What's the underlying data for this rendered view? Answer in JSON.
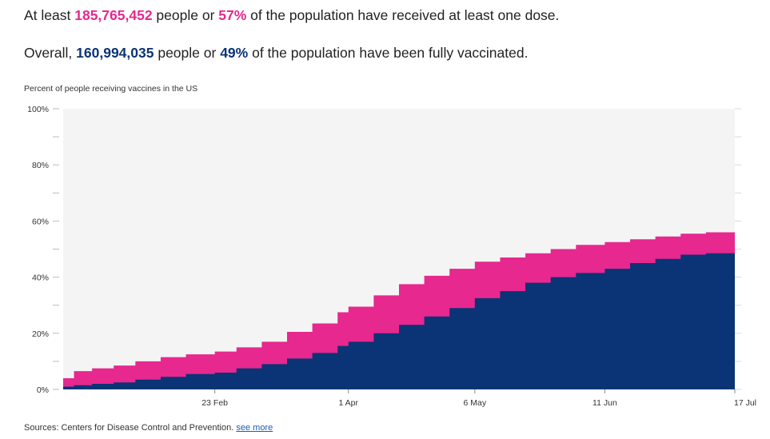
{
  "headline": {
    "line1": {
      "prefix": "At least ",
      "count": "185,765,452",
      "middle": " people or ",
      "percent": "57%",
      "suffix": " of the population have received at least one dose."
    },
    "line2": {
      "prefix": "Overall, ",
      "count": "160,994,035",
      "middle": " people or ",
      "percent": "49%",
      "suffix": " of the population have been fully vaccinated."
    }
  },
  "colors": {
    "one_dose": "#e6288f",
    "fully_vaccinated": "#0a3475",
    "plot_background": "#f4f4f4"
  },
  "chart_data": {
    "type": "area",
    "title": "Percent of people receiving vaccines in the US",
    "xlabel": "",
    "ylabel": "",
    "ylim": [
      0,
      100
    ],
    "yticks": [
      0,
      20,
      40,
      60,
      80,
      100
    ],
    "ytick_labels": [
      "0%",
      "20%",
      "40%",
      "60%",
      "80%",
      "100%"
    ],
    "xtick_dates": [
      "2021-02-23",
      "2021-04-01",
      "2021-05-06",
      "2021-06-11",
      "2021-07-17"
    ],
    "xtick_labels": [
      "23 Feb",
      "1 Apr",
      "6 May",
      "11 Jun",
      "17 Jul"
    ],
    "grid": false,
    "x": [
      "2021-01-12",
      "2021-01-15",
      "2021-01-20",
      "2021-01-26",
      "2021-02-01",
      "2021-02-08",
      "2021-02-15",
      "2021-02-23",
      "2021-03-01",
      "2021-03-08",
      "2021-03-15",
      "2021-03-22",
      "2021-03-29",
      "2021-04-01",
      "2021-04-08",
      "2021-04-15",
      "2021-04-22",
      "2021-04-29",
      "2021-05-06",
      "2021-05-13",
      "2021-05-20",
      "2021-05-27",
      "2021-06-03",
      "2021-06-11",
      "2021-06-18",
      "2021-06-25",
      "2021-07-02",
      "2021-07-09",
      "2021-07-17"
    ],
    "series": [
      {
        "name": "At least one dose",
        "color": "#e6288f",
        "values": [
          4.0,
          6.5,
          7.5,
          8.5,
          10.0,
          11.5,
          12.5,
          13.5,
          15.0,
          17.0,
          20.5,
          23.5,
          27.5,
          29.5,
          33.5,
          37.5,
          40.5,
          43.0,
          45.5,
          47.0,
          48.5,
          50.0,
          51.5,
          52.5,
          53.5,
          54.5,
          55.5,
          56.0,
          56.5
        ]
      },
      {
        "name": "Fully vaccinated",
        "color": "#0a3475",
        "values": [
          1.0,
          1.5,
          2.0,
          2.5,
          3.5,
          4.5,
          5.5,
          6.0,
          7.5,
          9.0,
          11.0,
          13.0,
          15.5,
          17.0,
          20.0,
          23.0,
          26.0,
          29.0,
          32.5,
          35.0,
          38.0,
          40.0,
          41.5,
          43.0,
          45.0,
          46.5,
          48.0,
          48.5,
          49.0
        ]
      }
    ]
  },
  "source": {
    "text": "Sources: Centers for Disease Control and Prevention. ",
    "link_label": "see more"
  }
}
